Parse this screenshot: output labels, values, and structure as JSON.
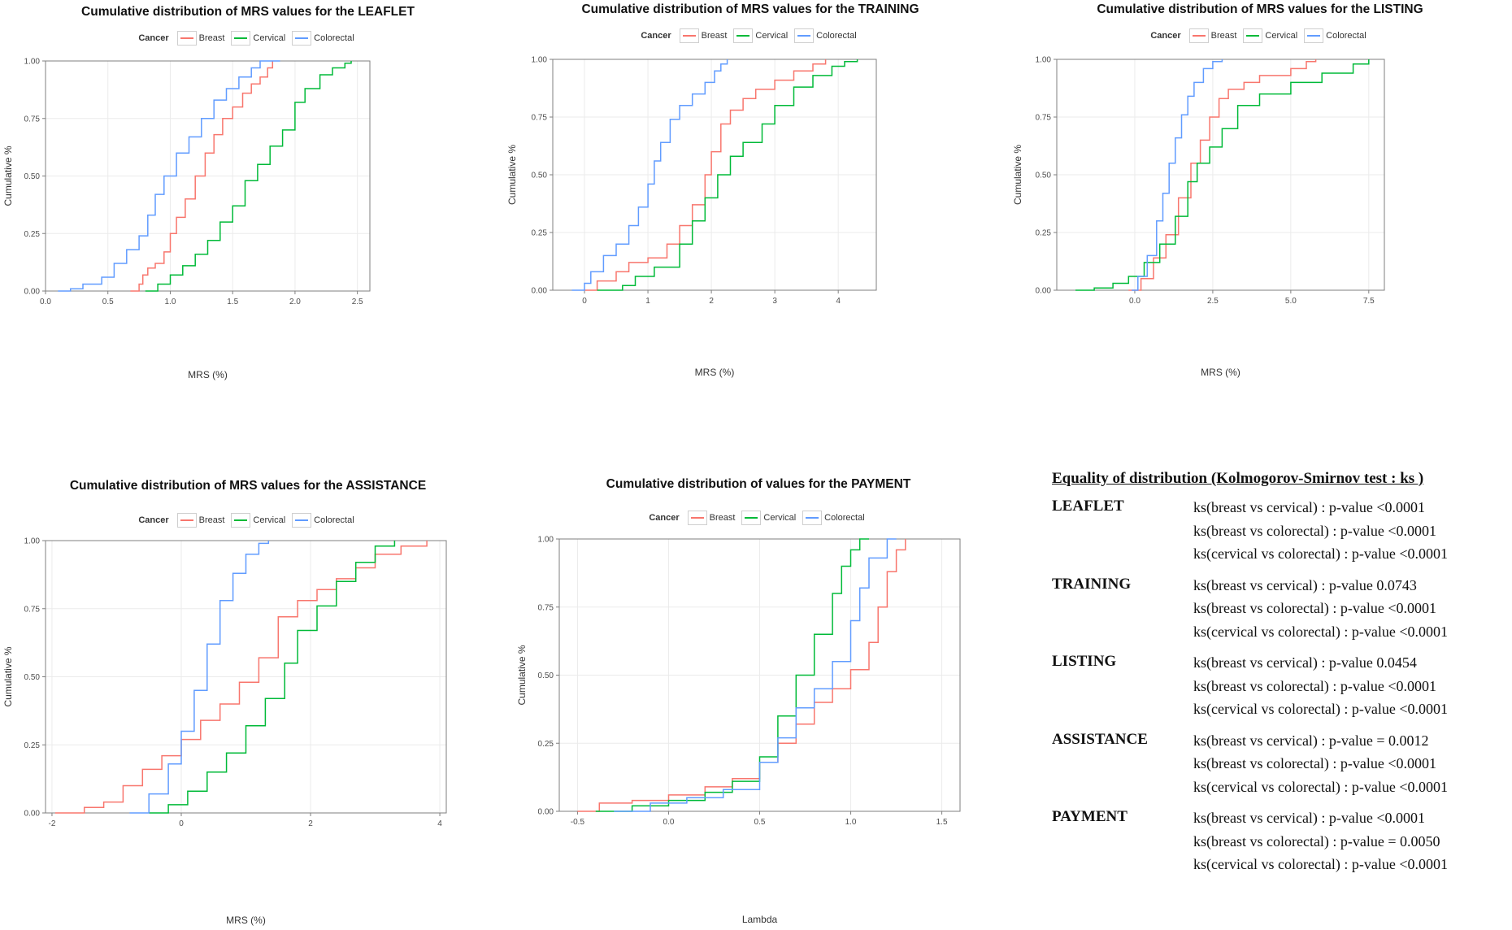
{
  "colors": {
    "breast": "#f8766d",
    "cervical": "#00ba38",
    "colorectal": "#619cff"
  },
  "legend": {
    "title": "Cancer",
    "labels": [
      "Breast",
      "Cervical",
      "Colorectal"
    ]
  },
  "chart_data": [
    {
      "type": "line",
      "title": "Cumulative distribution of MRS values for the LEAFLET",
      "xlabel": "MRS (%)",
      "ylabel": "Cumulative %",
      "xlim": [
        0,
        2.6
      ],
      "ylim": [
        0,
        1
      ],
      "xticks": [
        "0.0",
        "0.5",
        "1.0",
        "1.5",
        "2.0",
        "2.5"
      ],
      "xtick_values": [
        0,
        0.5,
        1,
        1.5,
        2,
        2.5
      ],
      "yticks": [
        "0.00",
        "0.25",
        "0.50",
        "0.75",
        "1.00"
      ],
      "ytick_values": [
        0,
        0.25,
        0.5,
        0.75,
        1
      ],
      "grid": true,
      "legend_position": "top",
      "series": [
        {
          "name": "Breast",
          "x": [
            0.68,
            0.75,
            0.78,
            0.82,
            0.88,
            0.95,
            1.0,
            1.05,
            1.12,
            1.2,
            1.28,
            1.35,
            1.42,
            1.5,
            1.58,
            1.65,
            1.72,
            1.78,
            1.82
          ],
          "y": [
            0,
            0.03,
            0.07,
            0.1,
            0.12,
            0.17,
            0.25,
            0.32,
            0.4,
            0.5,
            0.6,
            0.68,
            0.75,
            0.8,
            0.86,
            0.9,
            0.93,
            0.97,
            1
          ]
        },
        {
          "name": "Cervical",
          "x": [
            0.8,
            0.9,
            1.0,
            1.1,
            1.2,
            1.3,
            1.4,
            1.5,
            1.6,
            1.7,
            1.8,
            1.9,
            2.0,
            2.08,
            2.2,
            2.3,
            2.4,
            2.45
          ],
          "y": [
            0,
            0.03,
            0.07,
            0.11,
            0.16,
            0.22,
            0.3,
            0.37,
            0.48,
            0.55,
            0.63,
            0.7,
            0.82,
            0.88,
            0.94,
            0.97,
            0.99,
            1
          ]
        },
        {
          "name": "Colorectal",
          "x": [
            0.1,
            0.2,
            0.3,
            0.45,
            0.55,
            0.65,
            0.75,
            0.82,
            0.88,
            0.95,
            1.05,
            1.15,
            1.25,
            1.35,
            1.45,
            1.55,
            1.65,
            1.72,
            1.8,
            1.88
          ],
          "y": [
            0,
            0.01,
            0.03,
            0.06,
            0.12,
            0.18,
            0.24,
            0.33,
            0.42,
            0.5,
            0.6,
            0.67,
            0.75,
            0.83,
            0.88,
            0.93,
            0.97,
            1,
            1,
            1
          ]
        }
      ]
    },
    {
      "type": "line",
      "title": "Cumulative distribution of MRS values for the TRAINING",
      "xlabel": "MRS (%)",
      "ylabel": "Cumulative %",
      "xlim": [
        -0.5,
        4.6
      ],
      "ylim": [
        0,
        1
      ],
      "xticks": [
        "0",
        "1",
        "2",
        "3",
        "4"
      ],
      "xtick_values": [
        0,
        1,
        2,
        3,
        4
      ],
      "yticks": [
        "0.00",
        "0.25",
        "0.50",
        "0.75",
        "1.00"
      ],
      "ytick_values": [
        0,
        0.25,
        0.5,
        0.75,
        1
      ],
      "grid": true,
      "legend_position": "top",
      "series": [
        {
          "name": "Breast",
          "x": [
            0.0,
            0.2,
            0.5,
            0.7,
            1.0,
            1.3,
            1.5,
            1.7,
            1.9,
            2.0,
            2.15,
            2.3,
            2.5,
            2.7,
            3.0,
            3.3,
            3.6,
            3.8
          ],
          "y": [
            0,
            0.04,
            0.08,
            0.12,
            0.14,
            0.2,
            0.28,
            0.37,
            0.5,
            0.6,
            0.72,
            0.78,
            0.83,
            0.87,
            0.91,
            0.95,
            0.98,
            1
          ]
        },
        {
          "name": "Cervical",
          "x": [
            0.2,
            0.6,
            0.8,
            1.1,
            1.5,
            1.7,
            1.9,
            2.1,
            2.3,
            2.5,
            2.8,
            3.0,
            3.3,
            3.6,
            3.9,
            4.1,
            4.3
          ],
          "y": [
            0,
            0.02,
            0.06,
            0.1,
            0.2,
            0.3,
            0.4,
            0.5,
            0.58,
            0.64,
            0.72,
            0.8,
            0.88,
            0.93,
            0.97,
            0.99,
            1
          ]
        },
        {
          "name": "Colorectal",
          "x": [
            -0.2,
            0.0,
            0.1,
            0.3,
            0.5,
            0.7,
            0.85,
            1.0,
            1.1,
            1.2,
            1.35,
            1.5,
            1.7,
            1.9,
            2.05,
            2.15,
            2.25
          ],
          "y": [
            0,
            0.03,
            0.08,
            0.15,
            0.2,
            0.28,
            0.36,
            0.46,
            0.56,
            0.64,
            0.74,
            0.8,
            0.85,
            0.9,
            0.95,
            0.98,
            1
          ]
        }
      ]
    },
    {
      "type": "line",
      "title": "Cumulative distribution of MRS values for the LISTING",
      "xlabel": "MRS (%)",
      "ylabel": "Cumulative %",
      "xlim": [
        -2.5,
        8.0
      ],
      "ylim": [
        0,
        1
      ],
      "xticks": [
        "0.0",
        "2.5",
        "5.0",
        "7.5"
      ],
      "xtick_values": [
        0,
        2.5,
        5,
        7.5
      ],
      "yticks": [
        "0.00",
        "0.25",
        "0.50",
        "0.75",
        "1.00"
      ],
      "ytick_values": [
        0,
        0.25,
        0.5,
        0.75,
        1
      ],
      "grid": true,
      "legend_position": "top",
      "series": [
        {
          "name": "Breast",
          "x": [
            -0.2,
            0.2,
            0.6,
            1.0,
            1.4,
            1.8,
            2.1,
            2.4,
            2.7,
            3.0,
            3.5,
            4.0,
            5.0,
            5.5,
            5.8
          ],
          "y": [
            0,
            0.05,
            0.14,
            0.24,
            0.4,
            0.55,
            0.65,
            0.75,
            0.83,
            0.87,
            0.9,
            0.93,
            0.96,
            0.99,
            1
          ]
        },
        {
          "name": "Cervical",
          "x": [
            -1.9,
            -1.3,
            -0.7,
            -0.2,
            0.3,
            0.8,
            1.3,
            1.7,
            2.0,
            2.4,
            2.8,
            3.3,
            4.0,
            5.0,
            6.0,
            7.0,
            7.5
          ],
          "y": [
            0,
            0.01,
            0.03,
            0.06,
            0.12,
            0.2,
            0.32,
            0.47,
            0.55,
            0.62,
            0.7,
            0.8,
            0.85,
            0.9,
            0.94,
            0.98,
            1
          ]
        },
        {
          "name": "Colorectal",
          "x": [
            -0.1,
            0.1,
            0.4,
            0.7,
            0.9,
            1.1,
            1.3,
            1.5,
            1.7,
            1.9,
            2.2,
            2.5,
            2.8
          ],
          "y": [
            0,
            0.06,
            0.15,
            0.3,
            0.42,
            0.55,
            0.66,
            0.76,
            0.84,
            0.9,
            0.96,
            0.99,
            1
          ]
        }
      ]
    },
    {
      "type": "line",
      "title": "Cumulative distribution of MRS values for the ASSISTANCE",
      "xlabel": "MRS (%)",
      "ylabel": "Cumulative %",
      "xlim": [
        -2.1,
        4.1
      ],
      "ylim": [
        0,
        1
      ],
      "xticks": [
        "-2",
        "0",
        "2",
        "4"
      ],
      "xtick_values": [
        -2,
        0,
        2,
        4
      ],
      "yticks": [
        "0.00",
        "0.25",
        "0.50",
        "0.75",
        "1.00"
      ],
      "ytick_values": [
        0,
        0.25,
        0.5,
        0.75,
        1
      ],
      "grid": true,
      "legend_position": "top",
      "series": [
        {
          "name": "Breast",
          "x": [
            -1.95,
            -1.5,
            -1.2,
            -0.9,
            -0.6,
            -0.3,
            0.0,
            0.3,
            0.6,
            0.9,
            1.2,
            1.5,
            1.8,
            2.1,
            2.4,
            2.7,
            3.0,
            3.4,
            3.8
          ],
          "y": [
            0,
            0.02,
            0.04,
            0.1,
            0.16,
            0.21,
            0.27,
            0.34,
            0.4,
            0.48,
            0.57,
            0.72,
            0.78,
            0.82,
            0.86,
            0.9,
            0.95,
            0.98,
            1
          ]
        },
        {
          "name": "Cervical",
          "x": [
            -0.5,
            -0.2,
            0.1,
            0.4,
            0.7,
            1.0,
            1.3,
            1.6,
            1.8,
            2.1,
            2.4,
            2.7,
            3.0,
            3.3
          ],
          "y": [
            0,
            0.03,
            0.08,
            0.15,
            0.22,
            0.32,
            0.42,
            0.55,
            0.67,
            0.76,
            0.85,
            0.92,
            0.98,
            1
          ]
        },
        {
          "name": "Colorectal",
          "x": [
            -0.8,
            -0.5,
            -0.2,
            0.0,
            0.2,
            0.4,
            0.6,
            0.8,
            1.0,
            1.2,
            1.35
          ],
          "y": [
            0,
            0.07,
            0.18,
            0.3,
            0.45,
            0.62,
            0.78,
            0.88,
            0.95,
            0.99,
            1
          ]
        }
      ]
    },
    {
      "type": "line",
      "title": "Cumulative distribution of values for the PAYMENT",
      "xlabel": "Lambda",
      "ylabel": "Cumulative %",
      "xlim": [
        -0.6,
        1.6
      ],
      "ylim": [
        0,
        1
      ],
      "xticks": [
        "-0.5",
        "0.0",
        "0.5",
        "1.0",
        "1.5"
      ],
      "xtick_values": [
        -0.5,
        0,
        0.5,
        1,
        1.5
      ],
      "yticks": [
        "0.00",
        "0.25",
        "0.50",
        "0.75",
        "1.00"
      ],
      "ytick_values": [
        0,
        0.25,
        0.5,
        0.75,
        1
      ],
      "grid": true,
      "legend_position": "top",
      "series": [
        {
          "name": "Breast",
          "x": [
            -0.5,
            -0.38,
            -0.2,
            0.0,
            0.2,
            0.35,
            0.5,
            0.6,
            0.7,
            0.8,
            0.9,
            1.0,
            1.1,
            1.15,
            1.2,
            1.25,
            1.3
          ],
          "y": [
            0,
            0.03,
            0.04,
            0.06,
            0.09,
            0.12,
            0.18,
            0.25,
            0.32,
            0.4,
            0.45,
            0.52,
            0.62,
            0.75,
            0.88,
            0.96,
            1
          ]
        },
        {
          "name": "Cervical",
          "x": [
            -0.4,
            -0.2,
            0.0,
            0.2,
            0.35,
            0.5,
            0.6,
            0.7,
            0.8,
            0.9,
            0.95,
            1.0,
            1.05,
            1.1
          ],
          "y": [
            0,
            0.02,
            0.04,
            0.07,
            0.11,
            0.2,
            0.35,
            0.5,
            0.65,
            0.8,
            0.9,
            0.96,
            1,
            1
          ]
        },
        {
          "name": "Colorectal",
          "x": [
            -0.3,
            -0.1,
            0.1,
            0.3,
            0.5,
            0.6,
            0.7,
            0.8,
            0.9,
            1.0,
            1.05,
            1.1,
            1.2,
            1.25
          ],
          "y": [
            0,
            0.03,
            0.05,
            0.08,
            0.18,
            0.27,
            0.38,
            0.45,
            0.55,
            0.7,
            0.82,
            0.93,
            1,
            1
          ]
        }
      ]
    }
  ],
  "ks": {
    "title": "Equality of distribution (Kolmogorov-Smirnov test : ks )",
    "groups": [
      {
        "name": "LEAFLET",
        "tests": [
          "ks(breast vs cervical) :  p-value <0.0001",
          "ks(breast vs colorectal) : p-value <0.0001",
          "ks(cervical vs colorectal) : p-value <0.0001"
        ]
      },
      {
        "name": "TRAINING",
        "tests": [
          "ks(breast vs cervical) :  p-value 0.0743",
          "ks(breast vs colorectal) : p-value <0.0001",
          "ks(cervical vs colorectal) : p-value <0.0001"
        ]
      },
      {
        "name": "LISTING",
        "tests": [
          "ks(breast vs cervical) :  p-value 0.0454",
          "ks(breast vs colorectal) : p-value <0.0001",
          "ks(cervical vs colorectal) : p-value <0.0001"
        ]
      },
      {
        "name": "ASSISTANCE",
        "tests": [
          "ks(breast vs cervical) :  p-value = 0.0012",
          "ks(breast vs colorectal) : p-value <0.0001",
          "ks(cervical vs colorectal) : p-value <0.0001"
        ]
      },
      {
        "name": "PAYMENT",
        "tests": [
          "ks(breast vs cervical) :  p-value <0.0001",
          "ks(breast vs colorectal) : p-value = 0.0050",
          "ks(cervical vs colorectal) : p-value <0.0001"
        ]
      }
    ]
  }
}
